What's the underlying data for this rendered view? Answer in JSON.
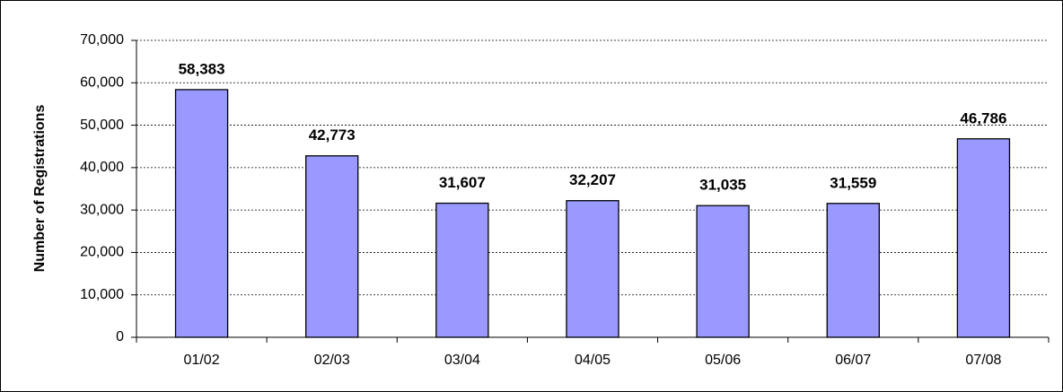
{
  "chart_data": {
    "type": "bar",
    "y_label": "Number of Registrations",
    "categories": [
      "01/02",
      "02/03",
      "03/04",
      "04/05",
      "05/06",
      "06/07",
      "07/08"
    ],
    "values": [
      58383,
      42773,
      31607,
      32207,
      31035,
      31559,
      46786
    ],
    "value_labels": [
      "58,383",
      "42,773",
      "31,607",
      "32,207",
      "31,035",
      "31,559",
      "46,786"
    ],
    "color": "#9999ff",
    "ylim": [
      0,
      70000
    ],
    "yticks": [
      0,
      {
        "value": 10000,
        "label": "10,000"
      },
      {
        "value": 20000,
        "label": "20,000"
      },
      {
        "value": 30000,
        "label": "30,000"
      },
      {
        "value": 40000,
        "label": "40,000"
      },
      {
        "value": 50000,
        "label": "50,000"
      },
      {
        "value": 60000,
        "label": "60,000"
      },
      {
        "value": 70000,
        "label": "70,000"
      }
    ],
    "grid": true
  }
}
